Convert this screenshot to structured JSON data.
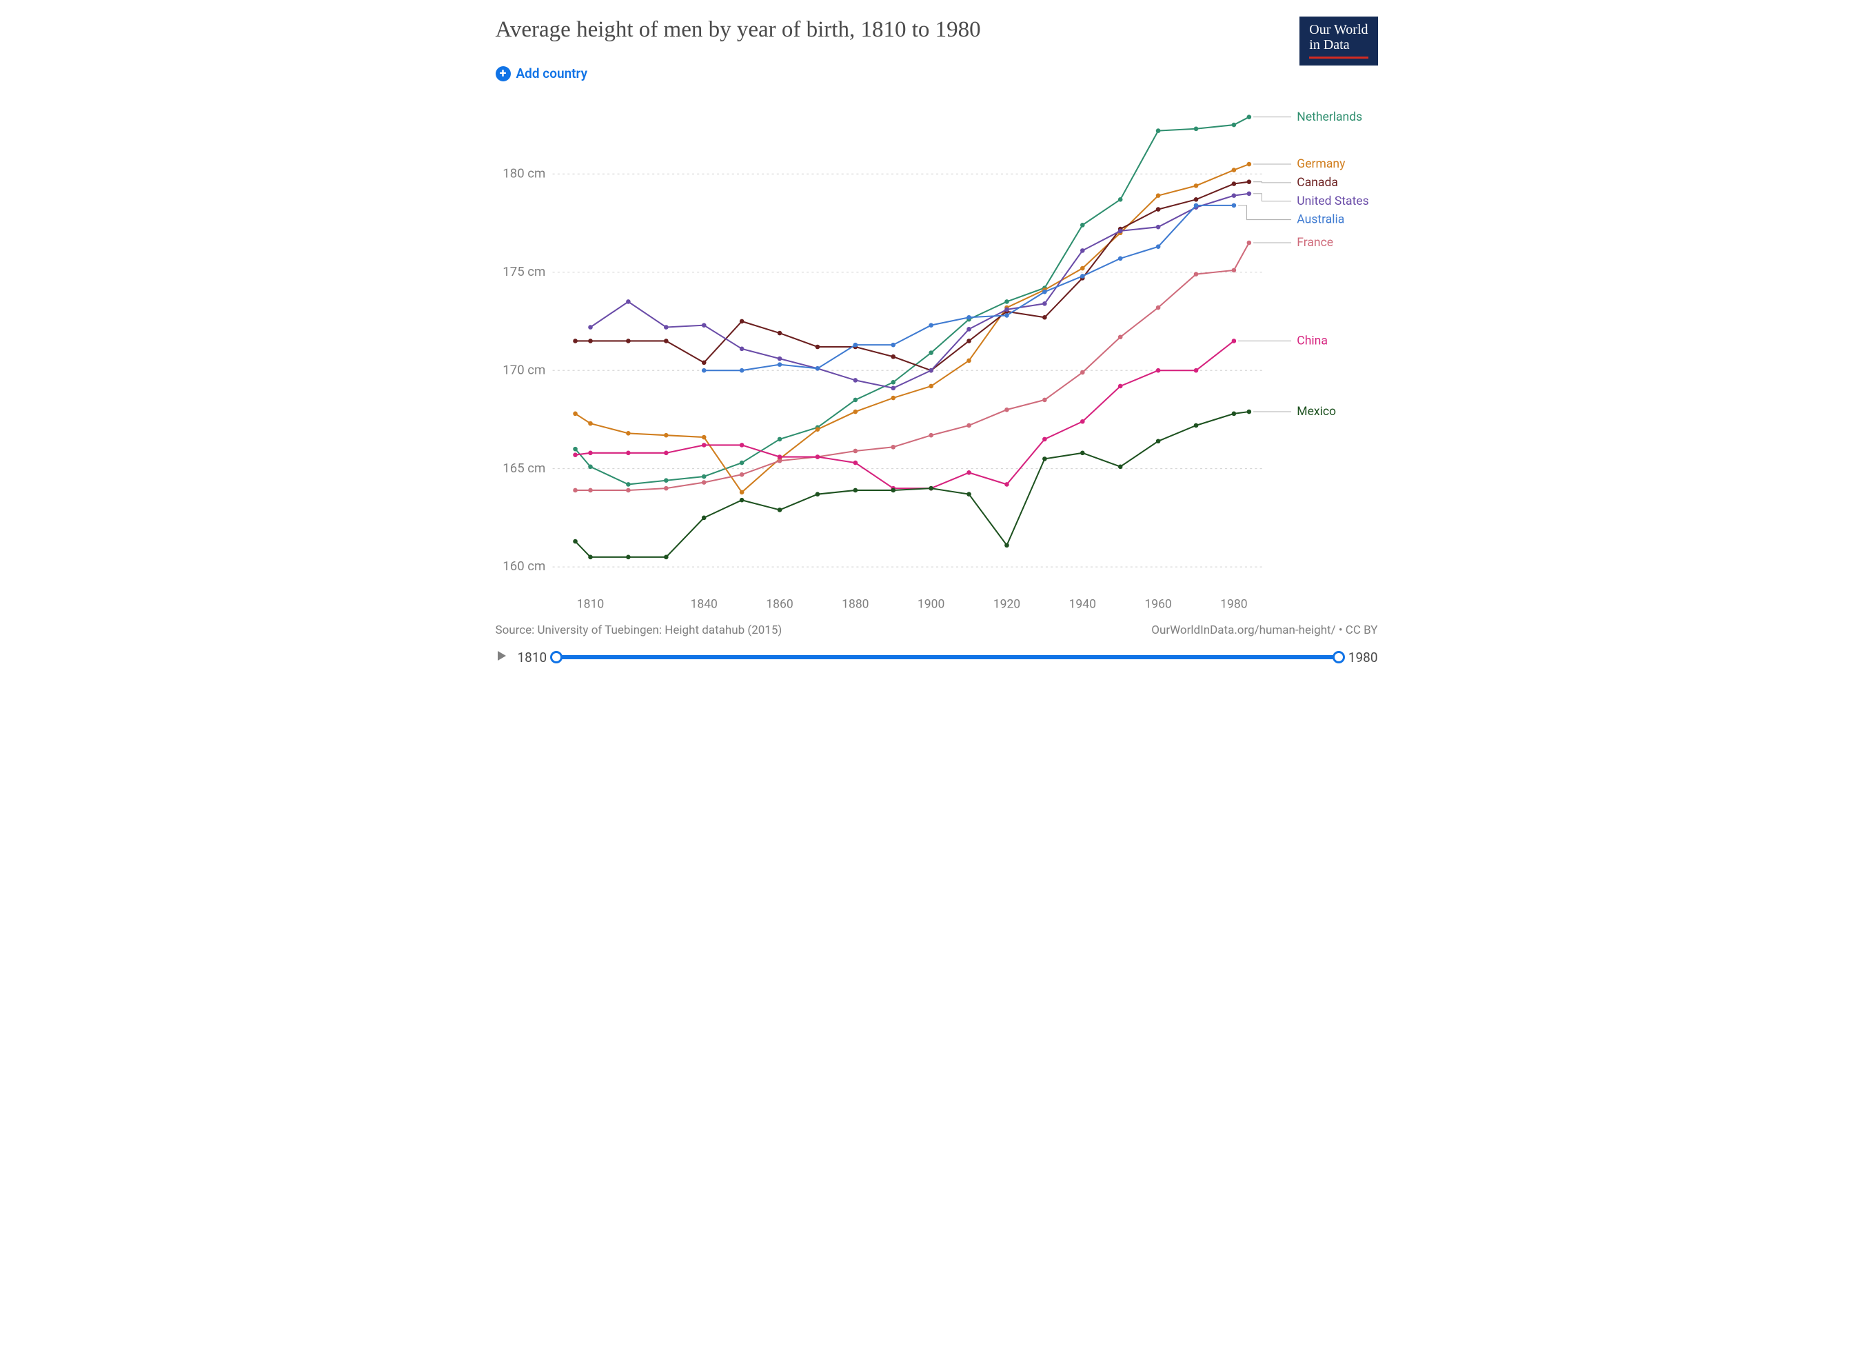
{
  "title": "Average height of men by year of birth, 1810 to 1980",
  "logo": {
    "line1": "Our World",
    "line2": "in Data"
  },
  "add_country_label": "Add country",
  "chart": {
    "type": "line",
    "x_years": [
      1806,
      1810,
      1820,
      1830,
      1840,
      1850,
      1860,
      1870,
      1880,
      1890,
      1900,
      1910,
      1920,
      1930,
      1940,
      1950,
      1960,
      1970,
      1980,
      1984
    ],
    "x_ticks": [
      1810,
      1840,
      1860,
      1880,
      1900,
      1920,
      1940,
      1960,
      1980
    ],
    "y_ticks": [
      160,
      165,
      170,
      175,
      180
    ],
    "y_unit": " cm",
    "xlim": [
      1800,
      1988
    ],
    "ylim": [
      159,
      184
    ],
    "grid_color": "#d0d0d0",
    "axis_text_color": "#808080",
    "background_color": "#ffffff",
    "line_width": 2,
    "marker_radius": 3.2,
    "label_fontsize": 17,
    "tick_fontsize": 17,
    "series": [
      {
        "name": "Netherlands",
        "color": "#2f8f6f",
        "y": [
          166.0,
          165.1,
          164.2,
          164.4,
          164.6,
          165.3,
          166.5,
          167.1,
          168.5,
          169.4,
          170.9,
          172.6,
          173.5,
          174.2,
          177.4,
          178.7,
          182.2,
          182.3,
          182.5,
          182.9
        ]
      },
      {
        "name": "Germany",
        "color": "#d07d1d",
        "y": [
          167.8,
          167.3,
          166.8,
          166.7,
          166.6,
          163.8,
          165.5,
          167.0,
          167.9,
          168.6,
          169.2,
          170.5,
          173.2,
          174.1,
          175.2,
          177.0,
          178.9,
          179.4,
          180.2,
          180.5
        ]
      },
      {
        "name": "Canada",
        "color": "#6b1f1f",
        "y": [
          171.5,
          171.5,
          171.5,
          171.5,
          170.4,
          172.5,
          171.9,
          171.2,
          171.2,
          170.7,
          170.0,
          171.5,
          173.0,
          172.7,
          174.7,
          177.2,
          178.2,
          178.7,
          179.5,
          179.6
        ]
      },
      {
        "name": "United States",
        "color": "#6a4ca8",
        "y": [
          null,
          172.2,
          173.5,
          172.2,
          172.3,
          171.1,
          170.6,
          170.1,
          169.5,
          169.1,
          170.0,
          172.1,
          173.1,
          173.4,
          176.1,
          177.1,
          177.3,
          178.3,
          178.9,
          179.0
        ]
      },
      {
        "name": "Australia",
        "color": "#3f7bd1",
        "y": [
          null,
          null,
          null,
          null,
          170.0,
          170.0,
          170.3,
          170.1,
          171.3,
          171.3,
          172.3,
          172.7,
          172.8,
          174.0,
          174.8,
          175.7,
          176.3,
          178.4,
          178.4,
          null
        ]
      },
      {
        "name": "France",
        "color": "#cf6b7b",
        "y": [
          163.9,
          163.9,
          163.9,
          164.0,
          164.3,
          164.7,
          165.4,
          165.6,
          165.9,
          166.1,
          166.7,
          167.2,
          168.0,
          168.5,
          169.9,
          171.7,
          173.2,
          174.9,
          175.1,
          176.5
        ]
      },
      {
        "name": "China",
        "color": "#d6227e",
        "y": [
          165.7,
          165.8,
          165.8,
          165.8,
          166.2,
          166.2,
          165.6,
          165.6,
          165.3,
          164.0,
          164.0,
          164.8,
          164.2,
          166.5,
          167.4,
          169.2,
          170.0,
          170.0,
          171.5,
          null
        ]
      },
      {
        "name": "Mexico",
        "color": "#1e5220",
        "y": [
          161.3,
          160.5,
          160.5,
          160.5,
          162.5,
          163.4,
          162.9,
          163.7,
          163.9,
          163.9,
          164.0,
          163.7,
          161.1,
          165.5,
          165.8,
          165.1,
          166.4,
          167.2,
          167.8,
          167.9
        ]
      }
    ]
  },
  "footer": {
    "source": "Source: University of Tuebingen: Height datahub (2015)",
    "credit": "OurWorldInData.org/human-height/ • CC BY"
  },
  "timeline": {
    "start": "1810",
    "end": "1980"
  }
}
